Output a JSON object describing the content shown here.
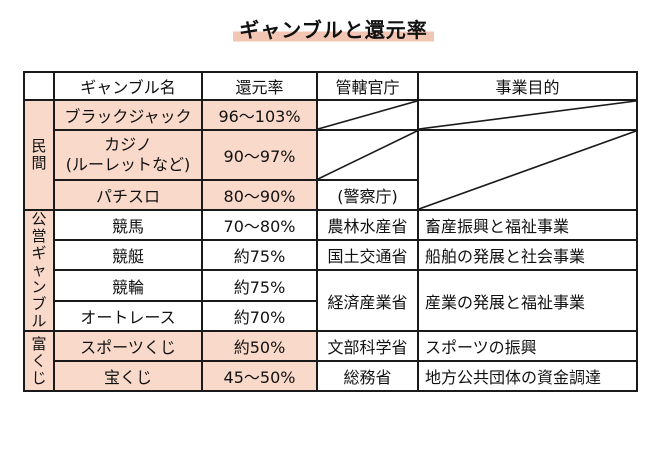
{
  "title": "ギャンブルと還元率",
  "headers": [
    "ギャンブル名",
    "還元率",
    "管轄官庁",
    "事業目的"
  ],
  "categories": {
    "private": [
      "民",
      "間"
    ],
    "public": [
      "公",
      "営",
      "ギ",
      "ャ",
      "ン",
      "ブ",
      "ル"
    ],
    "lottery": [
      "富",
      "く",
      "じ"
    ]
  },
  "rows": [
    {
      "name": "ブラックジャック",
      "rate": "96～103%"
    },
    {
      "name": "カジノ",
      "name2": "(ルーレットなど)",
      "rate": "90～97%"
    },
    {
      "name": "パチスロ",
      "rate": "80～90%",
      "agency": "(警察庁)"
    },
    {
      "name": "競馬",
      "rate": "70～80%",
      "agency": "農林水産省",
      "purpose": "畜産振興と福祉事業"
    },
    {
      "name": "競艇",
      "rate": "約75%",
      "agency": "国土交通省",
      "purpose": "船舶の発展と社会事業"
    },
    {
      "name": "競輪",
      "rate": "約75%",
      "agency": "経済産業省",
      "purpose": "産業の発展と福祉事業"
    },
    {
      "name": "オートレース",
      "rate": "約70%"
    },
    {
      "name": "スポーツくじ",
      "rate": "約50%",
      "agency": "文部科学省",
      "purpose": "スポーツの振興"
    },
    {
      "name": "宝くじ",
      "rate": "45～50%",
      "agency": "総務省",
      "purpose": "地方公共団体の資金調達"
    }
  ],
  "colors": {
    "pink_fill": "#f9d9c9",
    "title_highlight": "#f2c6b3",
    "border": "#1a1a1a"
  }
}
